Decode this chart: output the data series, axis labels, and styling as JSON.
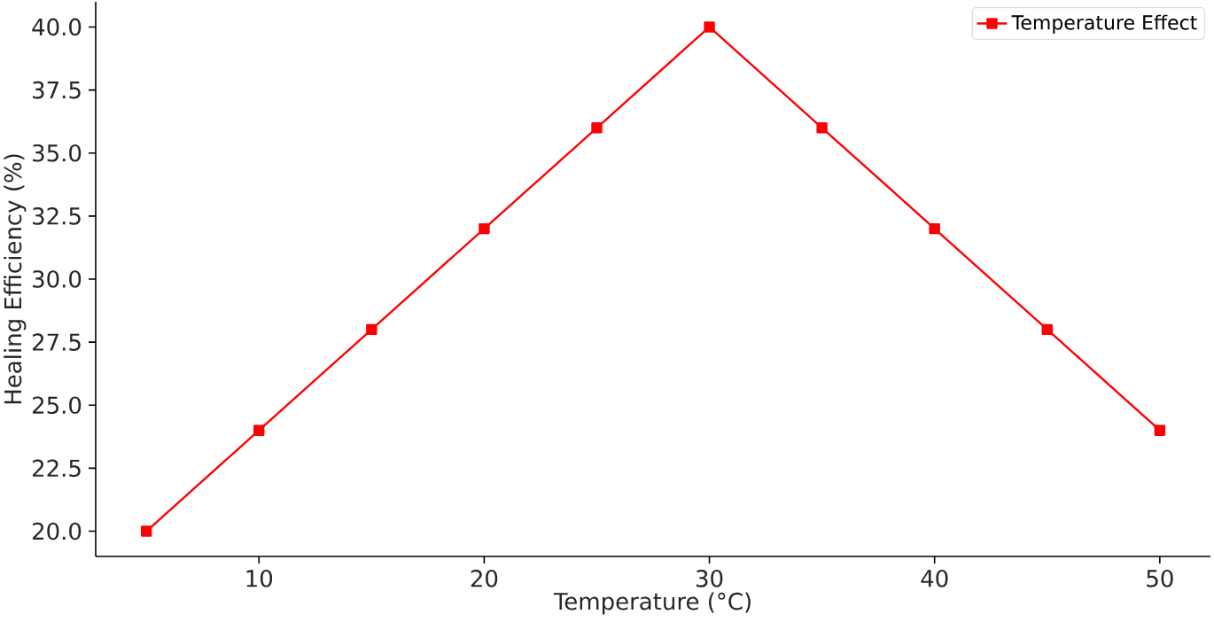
{
  "chart_data": {
    "type": "line",
    "xlabel": "Temperature (°C)",
    "ylabel": "Healing Efficiency (%)",
    "x": [
      5,
      10,
      15,
      20,
      25,
      30,
      35,
      40,
      45,
      50
    ],
    "series": [
      {
        "name": "Temperature Effect",
        "color": "#ff0000",
        "values": [
          20,
          24,
          28,
          32,
          36,
          40,
          36,
          32,
          28,
          24
        ]
      }
    ],
    "xlim": [
      2.75,
      52.25
    ],
    "ylim": [
      19,
      41
    ],
    "xticks": [
      10,
      20,
      30,
      40,
      50
    ],
    "yticks": [
      {
        "value": 20,
        "label": "20.0"
      },
      {
        "value": 22.5,
        "label": "22.5"
      },
      {
        "value": 25,
        "label": "25.0"
      },
      {
        "value": 27.5,
        "label": "27.5"
      },
      {
        "value": 30,
        "label": "30.0"
      },
      {
        "value": 32.5,
        "label": "32.5"
      },
      {
        "value": 35,
        "label": "35.0"
      },
      {
        "value": 37.5,
        "label": "37.5"
      },
      {
        "value": 40,
        "label": "40.0"
      }
    ],
    "legend": "top right",
    "marker": "square",
    "line_style": "solid",
    "grid": false
  }
}
